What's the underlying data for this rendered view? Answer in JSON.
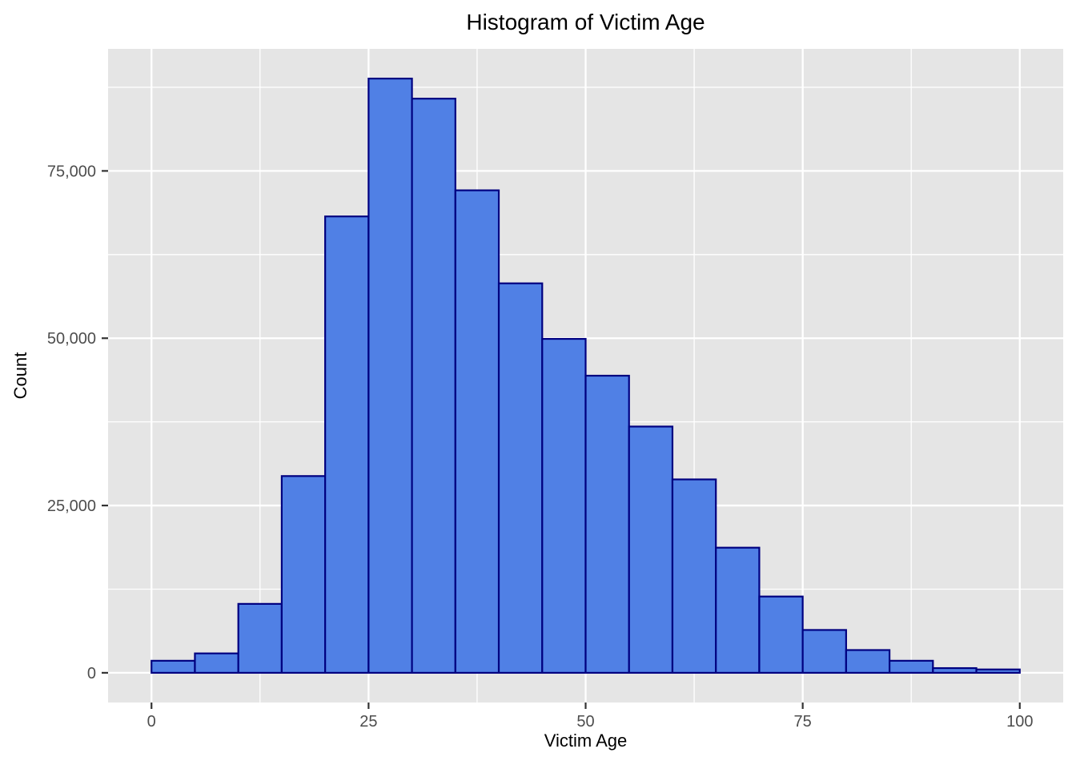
{
  "title": "Histogram of Victim Age",
  "x_axis": {
    "title": "Victim Age",
    "tick_labels": [
      "0",
      "25",
      "50",
      "75",
      "100"
    ]
  },
  "y_axis": {
    "title": "Count",
    "tick_labels": [
      "0",
      "25,000",
      "50,000",
      "75,000"
    ]
  },
  "chart_data": {
    "type": "bar",
    "subtype": "histogram",
    "title": "Histogram of Victim Age",
    "xlabel": "Victim Age",
    "ylabel": "Count",
    "bin_width": 5,
    "bin_edges": [
      0,
      5,
      10,
      15,
      20,
      25,
      30,
      35,
      40,
      45,
      50,
      55,
      60,
      65,
      70,
      75,
      80,
      85,
      90,
      95,
      100
    ],
    "counts": [
      1800,
      2900,
      10300,
      29400,
      68200,
      88800,
      85800,
      72100,
      58200,
      49900,
      44400,
      36800,
      28900,
      18700,
      11400,
      6400,
      3400,
      1800,
      700,
      500
    ],
    "x_ticks": [
      0,
      25,
      50,
      75,
      100
    ],
    "y_ticks": [
      0,
      25000,
      50000,
      75000
    ],
    "x_minor_ticks": [
      12.5,
      37.5,
      62.5,
      87.5
    ],
    "y_minor_ticks": [
      12500,
      37500,
      62500,
      87500
    ],
    "xlim": [
      0,
      100
    ],
    "ylim": [
      0,
      93200
    ],
    "grid": "major-and-minor",
    "legend": "none"
  },
  "colors": {
    "bar_fill": "#5080E5",
    "bar_border": "#000080",
    "panel_background": "#E5E5E5",
    "gridline": "#FFFFFF",
    "axis_text": "#4D4D4D",
    "tick_mark": "#333333",
    "title_text": "#000000",
    "page_background": "#FFFFFF"
  }
}
